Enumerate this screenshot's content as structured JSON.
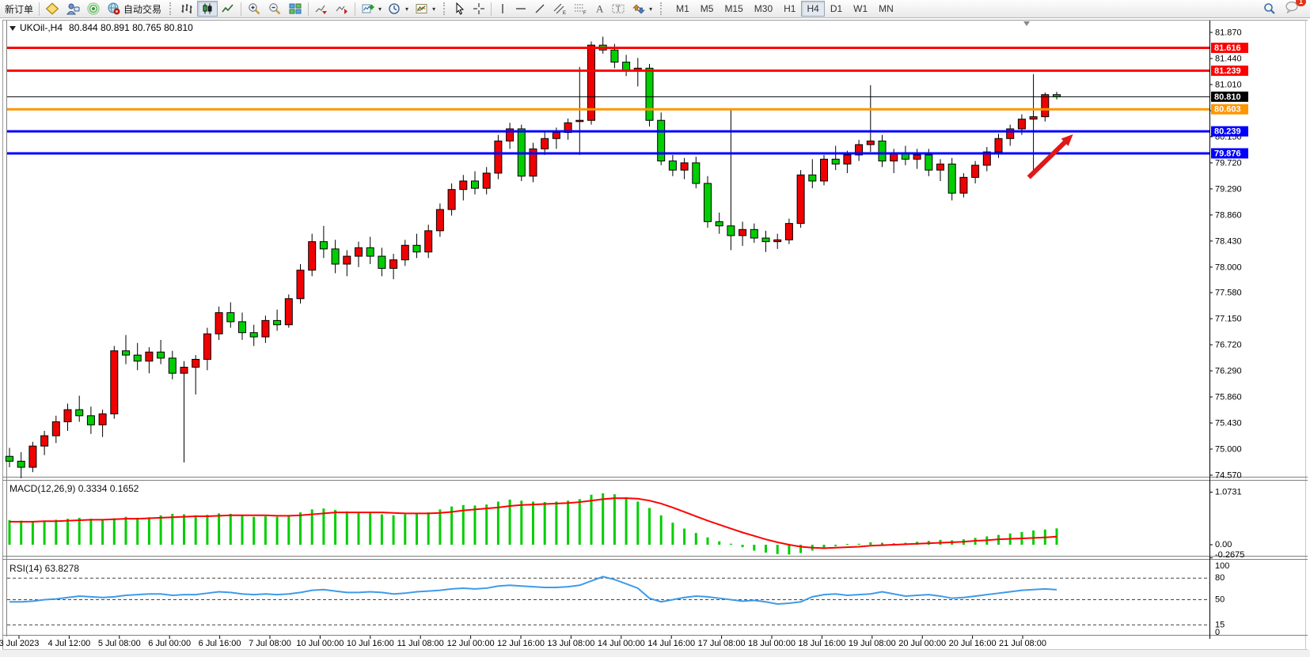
{
  "toolbar": {
    "new_order": "新订单",
    "auto_trading": "自动交易",
    "timeframes": [
      "M1",
      "M5",
      "M15",
      "M30",
      "H1",
      "H4",
      "D1",
      "W1",
      "MN"
    ],
    "active_timeframe": "H4",
    "notification_badge": "1",
    "icon_names": [
      "charts-gallery-icon",
      "terminal-icon",
      "signals-icon",
      "autotrading-globe-icon",
      "bar-chart-icon",
      "candlestick-chart-icon",
      "line-chart-icon",
      "zoom-in-icon",
      "zoom-out-icon",
      "tile-windows-icon",
      "auto-scroll-icon",
      "chart-shift-icon",
      "add-indicator-icon",
      "periods-clock-icon",
      "template-icon",
      "cursor-icon",
      "crosshair-icon",
      "vertical-line-icon",
      "horizontal-line-icon",
      "trendline-icon",
      "equidistant-channel-icon",
      "fibonacci-icon",
      "text-icon",
      "text-label-icon",
      "arrows-icon",
      "search-icon",
      "chat-icon"
    ]
  },
  "chart": {
    "ohlc_text": "80.844 80.891 80.765 80.810"
  },
  "chart_data": [
    {
      "type": "candlestick",
      "title": "UKOil-,H4",
      "timeframe": "H4",
      "current_ohlc": {
        "open": "80.844",
        "high": "80.891",
        "low": "80.765",
        "close": "80.810"
      },
      "ylim": [
        74.57,
        81.87
      ],
      "y_ticks": [
        "81.870",
        "81.440",
        "81.010",
        "80.580",
        "80.150",
        "79.720",
        "79.290",
        "78.860",
        "78.430",
        "78.000",
        "77.580",
        "77.150",
        "76.720",
        "76.290",
        "75.860",
        "75.430",
        "75.000",
        "74.570"
      ],
      "x_labels": [
        "3 Jul 2023",
        "4 Jul 12:00",
        "5 Jul 08:00",
        "6 Jul 00:00",
        "6 Jul 16:00",
        "7 Jul 08:00",
        "10 Jul 00:00",
        "10 Jul 16:00",
        "11 Jul 08:00",
        "12 Jul 00:00",
        "12 Jul 16:00",
        "13 Jul 08:00",
        "14 Jul 00:00",
        "14 Jul 16:00",
        "17 Jul 08:00",
        "18 Jul 00:00",
        "18 Jul 16:00",
        "19 Jul 08:00",
        "20 Jul 00:00",
        "20 Jul 16:00",
        "21 Jul 08:00"
      ],
      "colors": {
        "bull": "#F00000",
        "bear": "#00CE00",
        "wick": "#000000",
        "border": "#000000"
      },
      "hlines": [
        {
          "price": 81.616,
          "label": "81.616",
          "color": "#FF0000",
          "thickness": 3
        },
        {
          "price": 81.239,
          "label": "81.239",
          "color": "#FF0000",
          "thickness": 3
        },
        {
          "price": 80.81,
          "label": "80.810",
          "color": "#000000",
          "thickness": 1,
          "role": "current-price"
        },
        {
          "price": 80.603,
          "label": "80.603",
          "color": "#FF9500",
          "thickness": 3
        },
        {
          "price": 80.239,
          "label": "80.239",
          "color": "#0000FF",
          "thickness": 3
        },
        {
          "price": 79.876,
          "label": "79.876",
          "color": "#0000FF",
          "thickness": 3
        }
      ],
      "arrow": {
        "from": {
          "bar": 87.6,
          "price": 79.48
        },
        "to": {
          "bar": 91.4,
          "price": 80.19
        },
        "color": "#E01818"
      },
      "candles": [
        [
          74.88,
          75.02,
          74.7,
          74.8
        ],
        [
          74.8,
          74.95,
          74.52,
          74.7
        ],
        [
          74.7,
          75.12,
          74.62,
          75.05
        ],
        [
          75.05,
          75.3,
          74.9,
          75.22
        ],
        [
          75.22,
          75.55,
          75.1,
          75.45
        ],
        [
          75.45,
          75.75,
          75.3,
          75.65
        ],
        [
          75.65,
          75.88,
          75.45,
          75.55
        ],
        [
          75.55,
          75.7,
          75.25,
          75.4
        ],
        [
          75.4,
          75.65,
          75.2,
          75.58
        ],
        [
          75.58,
          76.7,
          75.5,
          76.62
        ],
        [
          76.62,
          76.88,
          76.4,
          76.55
        ],
        [
          76.55,
          76.75,
          76.3,
          76.45
        ],
        [
          76.45,
          76.68,
          76.25,
          76.6
        ],
        [
          76.6,
          76.8,
          76.4,
          76.5
        ],
        [
          76.5,
          76.62,
          76.15,
          76.25
        ],
        [
          76.25,
          76.45,
          74.78,
          76.35
        ],
        [
          76.35,
          76.55,
          75.9,
          76.48
        ],
        [
          76.48,
          77.0,
          76.3,
          76.9
        ],
        [
          76.9,
          77.35,
          76.8,
          77.25
        ],
        [
          77.25,
          77.42,
          77.0,
          77.1
        ],
        [
          77.1,
          77.25,
          76.8,
          76.92
        ],
        [
          76.92,
          77.05,
          76.7,
          76.85
        ],
        [
          76.85,
          77.2,
          76.75,
          77.12
        ],
        [
          77.12,
          77.3,
          76.95,
          77.05
        ],
        [
          77.05,
          77.55,
          77.0,
          77.48
        ],
        [
          77.48,
          78.05,
          77.4,
          77.95
        ],
        [
          77.95,
          78.55,
          77.85,
          78.42
        ],
        [
          78.42,
          78.68,
          78.15,
          78.3
        ],
        [
          78.3,
          78.45,
          77.9,
          78.05
        ],
        [
          78.05,
          78.28,
          77.85,
          78.18
        ],
        [
          78.18,
          78.42,
          78.0,
          78.32
        ],
        [
          78.32,
          78.5,
          78.05,
          78.18
        ],
        [
          78.18,
          78.32,
          77.85,
          77.98
        ],
        [
          77.98,
          78.22,
          77.8,
          78.12
        ],
        [
          78.12,
          78.45,
          78.02,
          78.36
        ],
        [
          78.36,
          78.55,
          78.15,
          78.25
        ],
        [
          78.25,
          78.7,
          78.15,
          78.6
        ],
        [
          78.6,
          79.05,
          78.5,
          78.95
        ],
        [
          78.95,
          79.38,
          78.85,
          79.28
        ],
        [
          79.28,
          79.52,
          79.1,
          79.42
        ],
        [
          79.42,
          79.58,
          79.2,
          79.3
        ],
        [
          79.3,
          79.65,
          79.2,
          79.55
        ],
        [
          79.55,
          80.18,
          79.45,
          80.08
        ],
        [
          80.08,
          80.38,
          79.95,
          80.28
        ],
        [
          80.28,
          80.35,
          79.42,
          79.5
        ],
        [
          79.5,
          80.05,
          79.4,
          79.95
        ],
        [
          79.95,
          80.22,
          79.85,
          80.12
        ],
        [
          80.12,
          80.3,
          79.95,
          80.22
        ],
        [
          80.22,
          80.45,
          80.1,
          80.38
        ],
        [
          80.4,
          81.3,
          79.85,
          80.42
        ],
        [
          80.42,
          81.72,
          80.35,
          81.66
        ],
        [
          81.66,
          81.8,
          81.52,
          81.58
        ],
        [
          81.58,
          81.68,
          81.28,
          81.38
        ],
        [
          81.38,
          81.5,
          81.15,
          81.25
        ],
        [
          81.25,
          81.45,
          80.98,
          81.28
        ],
        [
          81.28,
          81.35,
          80.32,
          80.42
        ],
        [
          80.42,
          80.55,
          79.68,
          79.75
        ],
        [
          79.75,
          79.85,
          79.5,
          79.6
        ],
        [
          79.6,
          79.8,
          79.45,
          79.72
        ],
        [
          79.72,
          79.82,
          79.3,
          79.38
        ],
        [
          79.38,
          79.5,
          78.65,
          78.75
        ],
        [
          78.75,
          78.9,
          78.55,
          78.68
        ],
        [
          78.68,
          80.6,
          78.28,
          78.52
        ],
        [
          78.52,
          78.75,
          78.35,
          78.62
        ],
        [
          78.62,
          78.72,
          78.4,
          78.48
        ],
        [
          78.48,
          78.6,
          78.25,
          78.42
        ],
        [
          78.42,
          78.55,
          78.3,
          78.45
        ],
        [
          78.45,
          78.8,
          78.38,
          78.72
        ],
        [
          78.72,
          79.6,
          78.65,
          79.52
        ],
        [
          79.52,
          79.78,
          79.3,
          79.42
        ],
        [
          79.42,
          79.85,
          79.35,
          79.78
        ],
        [
          79.78,
          80.0,
          79.6,
          79.7
        ],
        [
          79.7,
          79.92,
          79.55,
          79.85
        ],
        [
          79.85,
          80.1,
          79.75,
          80.02
        ],
        [
          80.02,
          81.0,
          79.9,
          80.08
        ],
        [
          80.08,
          80.18,
          79.65,
          79.75
        ],
        [
          79.75,
          79.95,
          79.55,
          79.88
        ],
        [
          79.88,
          80.0,
          79.68,
          79.78
        ],
        [
          79.78,
          79.95,
          79.62,
          79.85
        ],
        [
          79.85,
          79.95,
          79.5,
          79.6
        ],
        [
          79.6,
          79.78,
          79.42,
          79.7
        ],
        [
          79.7,
          79.8,
          79.1,
          79.22
        ],
        [
          79.22,
          79.55,
          79.15,
          79.48
        ],
        [
          79.48,
          79.75,
          79.38,
          79.68
        ],
        [
          79.68,
          79.98,
          79.58,
          79.9
        ],
        [
          79.9,
          80.2,
          79.8,
          80.12
        ],
        [
          80.12,
          80.35,
          80.0,
          80.28
        ],
        [
          80.28,
          80.52,
          80.18,
          80.44
        ],
        [
          80.44,
          81.18,
          79.58,
          80.48
        ],
        [
          80.48,
          80.88,
          80.4,
          80.844
        ],
        [
          80.844,
          80.891,
          80.765,
          80.81
        ]
      ]
    },
    {
      "type": "bar+line",
      "label": "MACD(12,26,9) 0.3334 0.1652",
      "name": "MACD(12,26,9)",
      "main_current": "0.3334",
      "signal_current": "0.1652",
      "ylim": [
        -0.2675,
        1.0731
      ],
      "y_ticks": [
        "1.0731",
        "0.00",
        "-0.2675"
      ],
      "colors": {
        "histogram": "#00CE00",
        "signal": "#FF0000"
      },
      "histogram": [
        0.5,
        0.49,
        0.48,
        0.49,
        0.51,
        0.53,
        0.55,
        0.53,
        0.52,
        0.54,
        0.57,
        0.55,
        0.56,
        0.6,
        0.63,
        0.62,
        0.6,
        0.61,
        0.64,
        0.63,
        0.6,
        0.57,
        0.58,
        0.57,
        0.6,
        0.66,
        0.72,
        0.74,
        0.71,
        0.68,
        0.67,
        0.66,
        0.62,
        0.6,
        0.62,
        0.63,
        0.66,
        0.72,
        0.78,
        0.81,
        0.8,
        0.82,
        0.88,
        0.92,
        0.9,
        0.88,
        0.87,
        0.88,
        0.9,
        0.93,
        1.02,
        1.05,
        1.03,
        0.97,
        0.88,
        0.75,
        0.6,
        0.45,
        0.33,
        0.24,
        0.15,
        0.07,
        0.02,
        -0.05,
        -0.12,
        -0.16,
        -0.19,
        -0.2,
        -0.17,
        -0.12,
        -0.07,
        -0.03,
        0.0,
        0.02,
        0.05,
        0.04,
        0.03,
        0.04,
        0.06,
        0.08,
        0.1,
        0.09,
        0.11,
        0.14,
        0.17,
        0.2,
        0.23,
        0.26,
        0.29,
        0.31,
        0.3334
      ],
      "signal": [
        0.47,
        0.47,
        0.47,
        0.48,
        0.48,
        0.49,
        0.5,
        0.51,
        0.51,
        0.52,
        0.53,
        0.53,
        0.54,
        0.55,
        0.56,
        0.57,
        0.58,
        0.58,
        0.59,
        0.6,
        0.6,
        0.6,
        0.6,
        0.59,
        0.59,
        0.6,
        0.62,
        0.64,
        0.66,
        0.66,
        0.66,
        0.66,
        0.66,
        0.65,
        0.64,
        0.64,
        0.64,
        0.65,
        0.67,
        0.7,
        0.72,
        0.74,
        0.76,
        0.79,
        0.81,
        0.82,
        0.83,
        0.84,
        0.85,
        0.87,
        0.9,
        0.93,
        0.95,
        0.95,
        0.94,
        0.9,
        0.84,
        0.76,
        0.67,
        0.58,
        0.49,
        0.41,
        0.33,
        0.25,
        0.18,
        0.11,
        0.05,
        0.0,
        -0.04,
        -0.06,
        -0.07,
        -0.06,
        -0.05,
        -0.04,
        -0.02,
        -0.01,
        0.0,
        0.01,
        0.02,
        0.03,
        0.04,
        0.05,
        0.06,
        0.08,
        0.09,
        0.11,
        0.12,
        0.13,
        0.14,
        0.15,
        0.1652
      ]
    },
    {
      "type": "line",
      "label": "RSI(14) 63.8278",
      "name": "RSI(14)",
      "current": "63.8278",
      "ylim": [
        0,
        100
      ],
      "levels": [
        80,
        50,
        15
      ],
      "y_ticks": [
        "100",
        "80",
        "50",
        "15",
        "0"
      ],
      "colors": {
        "line": "#3E9BE9",
        "level": "#444444"
      },
      "values": [
        47,
        47,
        48,
        50,
        51,
        53,
        55,
        54,
        53,
        54,
        56,
        57,
        58,
        58,
        56,
        57,
        57,
        59,
        61,
        60,
        58,
        57,
        58,
        57,
        58,
        60,
        63,
        64,
        62,
        60,
        60,
        61,
        60,
        58,
        59,
        61,
        62,
        63,
        65,
        66,
        65,
        66,
        69,
        70,
        69,
        68,
        67,
        67,
        68,
        70,
        76,
        82,
        78,
        72,
        66,
        52,
        47,
        50,
        53,
        55,
        54,
        52,
        50,
        48,
        49,
        47,
        44,
        45,
        47,
        54,
        57,
        58,
        56,
        57,
        58,
        61,
        58,
        55,
        56,
        57,
        55,
        52,
        53,
        55,
        57,
        59,
        61,
        63,
        64,
        65,
        63.83
      ]
    }
  ]
}
